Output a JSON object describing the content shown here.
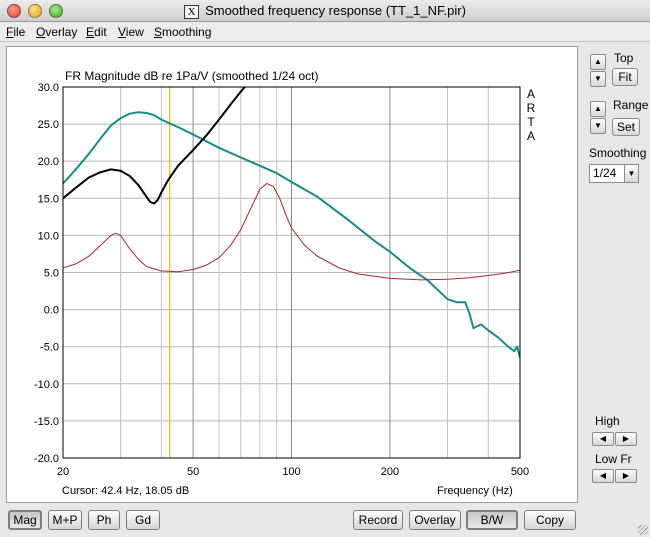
{
  "window": {
    "title": "Smoothed frequency response (TT_1_NF.pir)",
    "x_badge": "X"
  },
  "menu": [
    {
      "label": "File",
      "u": "F",
      "rest": "ile"
    },
    {
      "label": "Overlay",
      "u": "O",
      "rest": "verlay"
    },
    {
      "label": "Edit",
      "u": "E",
      "rest": "dit"
    },
    {
      "label": "View",
      "u": "V",
      "rest": "iew"
    },
    {
      "label": "Smoothing",
      "u": "S",
      "rest": "moothing"
    }
  ],
  "plot": {
    "title": "FR Magnitude dB re 1Pa/V (smoothed 1/24 oct)",
    "brand": [
      "A",
      "R",
      "T",
      "A"
    ],
    "cursor_text": "Cursor: 42.4 Hz, 18.05 dB",
    "xlabel": "Frequency (Hz)"
  },
  "right_panel": {
    "top_label": "Top",
    "fit_label": "Fit",
    "range_label": "Range",
    "set_label": "Set",
    "smoothing_label": "Smoothing",
    "smoothing_value": "1/24",
    "high_label": "High",
    "low_label": "Low Fr"
  },
  "bottom_buttons": {
    "mag": "Mag",
    "mp": "M+P",
    "ph": "Ph",
    "gd": "Gd",
    "record": "Record",
    "overlay": "Overlay",
    "bw": "B/W",
    "copy": "Copy"
  },
  "chart_data": {
    "type": "line",
    "title": "FR Magnitude dB re 1Pa/V (smoothed 1/24 oct)",
    "xlabel": "Frequency (Hz)",
    "ylabel": "",
    "x_scale": "log",
    "xlim": [
      20,
      500
    ],
    "ylim": [
      -20,
      30
    ],
    "x_ticks": [
      20,
      50,
      100,
      200,
      500
    ],
    "y_ticks": [
      30,
      25,
      20,
      15,
      10,
      5,
      0,
      -5,
      -10,
      -15,
      -20
    ],
    "y_tick_labels": [
      "30.0",
      "25.0",
      "20.0",
      "15.0",
      "10.0",
      "5.0",
      "0.0",
      "-5.0",
      "-10.0",
      "-15.0",
      "-20.0"
    ],
    "grid": true,
    "cursor": {
      "x": 42.4,
      "y": 18.05,
      "color": "#d4c400"
    },
    "series": [
      {
        "color": "#1a8a86",
        "points": [
          [
            20,
            17
          ],
          [
            22,
            19
          ],
          [
            24,
            21
          ],
          [
            26,
            23
          ],
          [
            28,
            24.8
          ],
          [
            30,
            25.8
          ],
          [
            32,
            26.4
          ],
          [
            34,
            26.6
          ],
          [
            36,
            26.5
          ],
          [
            38,
            26.2
          ],
          [
            40,
            25.6
          ],
          [
            45,
            24.6
          ],
          [
            50,
            23.6
          ],
          [
            60,
            21.8
          ],
          [
            70,
            20.5
          ],
          [
            80,
            19.4
          ],
          [
            90,
            18.4
          ],
          [
            100,
            17.2
          ],
          [
            120,
            15.2
          ],
          [
            150,
            12.0
          ],
          [
            180,
            9.2
          ],
          [
            200,
            7.8
          ],
          [
            230,
            5.6
          ],
          [
            260,
            4.0
          ],
          [
            300,
            1.4
          ],
          [
            320,
            1.0
          ],
          [
            340,
            1.0
          ],
          [
            350,
            -0.5
          ],
          [
            360,
            -2.5
          ],
          [
            380,
            -2.0
          ],
          [
            400,
            -2.8
          ],
          [
            430,
            -3.8
          ],
          [
            460,
            -5.0
          ],
          [
            480,
            -5.6
          ],
          [
            490,
            -5.0
          ],
          [
            500,
            -6.5
          ]
        ]
      },
      {
        "color": "#000000",
        "points": [
          [
            20,
            15
          ],
          [
            22,
            16.5
          ],
          [
            24,
            17.8
          ],
          [
            26,
            18.5
          ],
          [
            28,
            18.9
          ],
          [
            30,
            18.7
          ],
          [
            32,
            18.0
          ],
          [
            34,
            16.8
          ],
          [
            36,
            15.2
          ],
          [
            37,
            14.5
          ],
          [
            38,
            14.3
          ],
          [
            39,
            14.8
          ],
          [
            40,
            15.8
          ],
          [
            42,
            17.5
          ],
          [
            45,
            19.4
          ],
          [
            50,
            21.5
          ],
          [
            55,
            23.5
          ],
          [
            60,
            25.6
          ],
          [
            65,
            27.6
          ],
          [
            70,
            29.4
          ],
          [
            72,
            30.0
          ]
        ]
      },
      {
        "color": "#a52a2a",
        "points": [
          [
            20,
            5.6
          ],
          [
            22,
            6.2
          ],
          [
            24,
            7.2
          ],
          [
            26,
            8.6
          ],
          [
            28,
            10.0
          ],
          [
            29,
            10.3
          ],
          [
            30,
            10.0
          ],
          [
            32,
            8.2
          ],
          [
            34,
            6.8
          ],
          [
            36,
            5.8
          ],
          [
            40,
            5.2
          ],
          [
            45,
            5.1
          ],
          [
            50,
            5.4
          ],
          [
            55,
            6.0
          ],
          [
            60,
            7.0
          ],
          [
            65,
            8.6
          ],
          [
            70,
            10.8
          ],
          [
            75,
            13.6
          ],
          [
            80,
            16.2
          ],
          [
            84,
            17.0
          ],
          [
            88,
            16.6
          ],
          [
            92,
            15.0
          ],
          [
            96,
            12.8
          ],
          [
            100,
            11.0
          ],
          [
            110,
            8.6
          ],
          [
            120,
            7.2
          ],
          [
            140,
            5.6
          ],
          [
            160,
            4.8
          ],
          [
            200,
            4.2
          ],
          [
            250,
            4.0
          ],
          [
            300,
            4.1
          ],
          [
            350,
            4.3
          ],
          [
            400,
            4.6
          ],
          [
            450,
            4.9
          ],
          [
            500,
            5.3
          ]
        ]
      }
    ]
  }
}
